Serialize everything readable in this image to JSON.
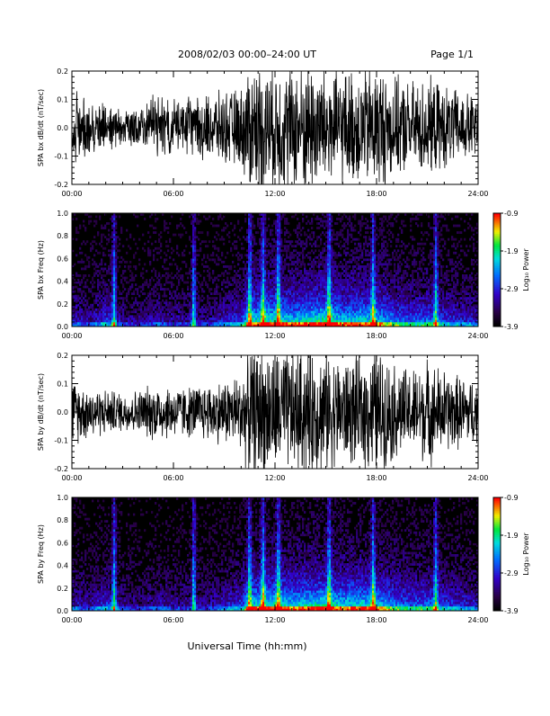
{
  "header": {
    "date_range": "2008/02/03   00:00–24:00 UT",
    "page": "Page 1/1"
  },
  "footer": {
    "xlabel": "Universal Time (hh:mm)"
  },
  "chart_data": [
    {
      "type": "line",
      "ylabel": "SPA bx dB/dt (nT/sec)",
      "ylim": [
        -0.2,
        0.2
      ],
      "xlim": [
        0,
        24
      ],
      "yticks": [
        "0.2",
        "0.1",
        "0.0",
        "-0.1",
        "-0.2"
      ],
      "ytick_values": [
        0.2,
        0.1,
        0.0,
        -0.1,
        -0.2
      ],
      "xticks": [
        "00:00",
        "06:00",
        "12:00",
        "18:00",
        "24:00"
      ],
      "xtick_values": [
        0,
        6,
        12,
        18,
        24
      ],
      "series": [
        {
          "x": [
            0,
            1,
            2,
            3,
            4,
            5,
            6,
            7,
            8,
            9,
            10,
            10.5,
            11,
            12,
            13,
            14,
            15,
            16,
            17,
            18,
            19,
            20,
            21,
            22,
            23,
            24
          ],
          "amplitude": [
            0.11,
            0.08,
            0.07,
            0.06,
            0.07,
            0.1,
            0.08,
            0.09,
            0.1,
            0.11,
            0.12,
            0.2,
            0.2,
            0.2,
            0.19,
            0.2,
            0.2,
            0.17,
            0.18,
            0.2,
            0.15,
            0.14,
            0.15,
            0.13,
            0.11,
            0.1
          ]
        }
      ]
    },
    {
      "type": "heatmap",
      "ylabel": "SPA bx Freq (Hz)",
      "ylim": [
        0.0,
        1.0
      ],
      "xlim": [
        0,
        24
      ],
      "yticks": [
        "1.0",
        "0.8",
        "0.6",
        "0.4",
        "0.2",
        "0.0"
      ],
      "ytick_values": [
        1.0,
        0.8,
        0.6,
        0.4,
        0.2,
        0.0
      ],
      "xticks": [
        "00:00",
        "06:00",
        "12:00",
        "18:00",
        "24:00"
      ],
      "xtick_values": [
        0,
        6,
        12,
        18,
        24
      ],
      "colorbar": {
        "label": "Log₁₀ Power",
        "range": [
          -3.9,
          -0.9
        ],
        "ticks": [
          "-0.9",
          "-1.9",
          "-2.9",
          "-3.9"
        ],
        "tick_values": [
          -0.9,
          -1.9,
          -2.9,
          -3.9
        ]
      },
      "x": [
        0,
        1,
        2,
        3,
        4,
        5,
        6,
        7,
        8,
        9,
        10,
        10.5,
        11,
        12,
        13,
        14,
        15,
        16,
        17,
        18,
        19,
        20,
        21,
        22,
        23,
        24
      ],
      "activity": [
        0.4,
        0.3,
        0.5,
        0.3,
        0.25,
        0.35,
        0.3,
        0.3,
        0.3,
        0.4,
        0.5,
        0.8,
        0.85,
        0.9,
        0.8,
        0.85,
        0.95,
        0.8,
        0.85,
        0.8,
        0.65,
        0.55,
        0.6,
        0.5,
        0.45,
        0.4
      ],
      "bursts": [
        2.5,
        7.2,
        10.5,
        11.3,
        12.2,
        15.2,
        17.8,
        21.5
      ]
    },
    {
      "type": "line",
      "ylabel": "SPA by dB/dt (nT/sec)",
      "ylim": [
        -0.2,
        0.2
      ],
      "xlim": [
        0,
        24
      ],
      "yticks": [
        "0.2",
        "0.1",
        "0.0",
        "-0.1",
        "-0.2"
      ],
      "ytick_values": [
        0.2,
        0.1,
        0.0,
        -0.1,
        -0.2
      ],
      "xticks": [
        "00:00",
        "06:00",
        "12:00",
        "18:00",
        "24:00"
      ],
      "xtick_values": [
        0,
        6,
        12,
        18,
        24
      ],
      "series": [
        {
          "x": [
            0,
            1,
            2,
            3,
            4,
            5,
            6,
            7,
            8,
            9,
            10,
            10.5,
            11,
            12,
            13,
            14,
            15,
            16,
            17,
            18,
            19,
            20,
            21,
            22,
            23,
            24
          ],
          "amplitude": [
            0.1,
            0.08,
            0.07,
            0.06,
            0.07,
            0.09,
            0.08,
            0.08,
            0.09,
            0.1,
            0.12,
            0.2,
            0.2,
            0.2,
            0.19,
            0.2,
            0.19,
            0.16,
            0.17,
            0.2,
            0.15,
            0.13,
            0.16,
            0.13,
            0.11,
            0.1
          ]
        }
      ]
    },
    {
      "type": "heatmap",
      "ylabel": "SPA by Freq (Hz)",
      "ylim": [
        0.0,
        1.0
      ],
      "xlim": [
        0,
        24
      ],
      "yticks": [
        "1.0",
        "0.8",
        "0.6",
        "0.4",
        "0.2",
        "0.0"
      ],
      "ytick_values": [
        1.0,
        0.8,
        0.6,
        0.4,
        0.2,
        0.0
      ],
      "xticks": [
        "00:00",
        "06:00",
        "12:00",
        "18:00",
        "24:00"
      ],
      "xtick_values": [
        0,
        6,
        12,
        18,
        24
      ],
      "colorbar": {
        "label": "Log₁₀ Power",
        "range": [
          -3.9,
          -0.9
        ],
        "ticks": [
          "-0.9",
          "-1.9",
          "-2.9",
          "-3.9"
        ],
        "tick_values": [
          -0.9,
          -1.9,
          -2.9,
          -3.9
        ]
      },
      "x": [
        0,
        1,
        2,
        3,
        4,
        5,
        6,
        7,
        8,
        9,
        10,
        10.5,
        11,
        12,
        13,
        14,
        15,
        16,
        17,
        18,
        19,
        20,
        21,
        22,
        23,
        24
      ],
      "activity": [
        0.4,
        0.3,
        0.5,
        0.3,
        0.25,
        0.35,
        0.3,
        0.3,
        0.3,
        0.4,
        0.5,
        0.8,
        0.85,
        0.9,
        0.8,
        0.85,
        0.9,
        0.8,
        0.85,
        0.8,
        0.65,
        0.55,
        0.6,
        0.5,
        0.45,
        0.4
      ],
      "bursts": [
        2.5,
        7.2,
        10.5,
        11.3,
        12.2,
        15.2,
        17.8,
        21.5
      ]
    }
  ]
}
